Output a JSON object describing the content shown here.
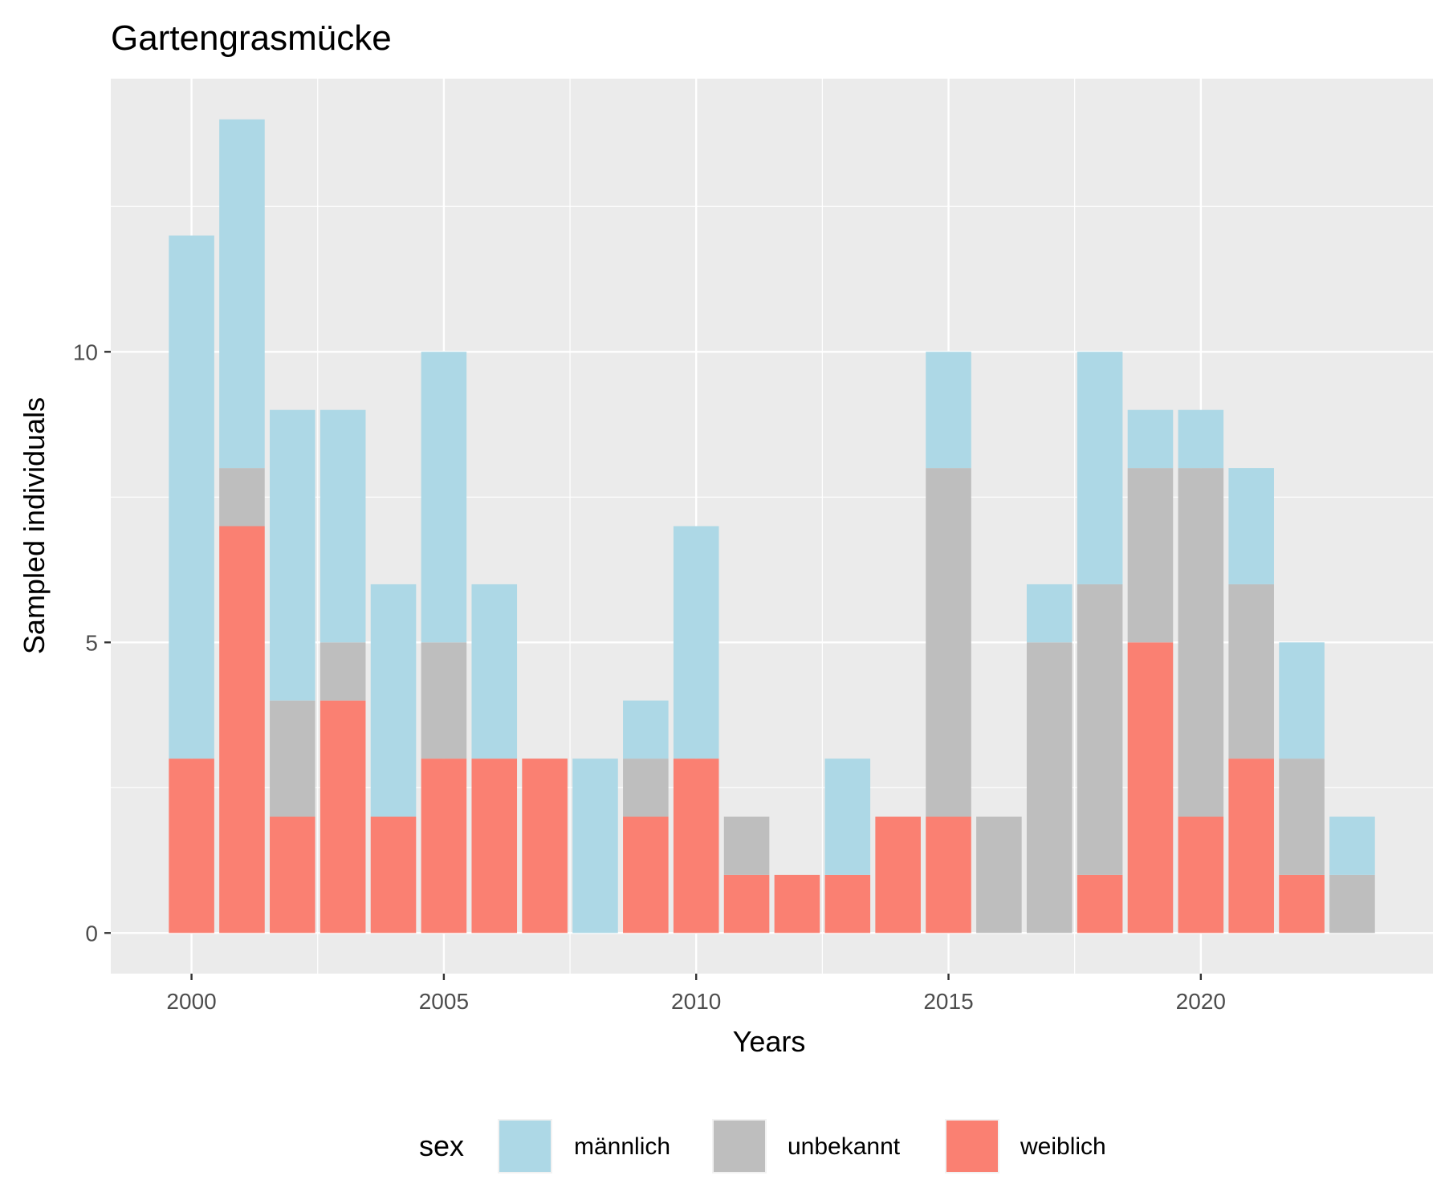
{
  "chart_data": {
    "type": "bar",
    "stacked": true,
    "title": "Gartengrasmücke",
    "xlabel": "Years",
    "ylabel": "Sampled individuals",
    "x": [
      2000,
      2001,
      2002,
      2003,
      2004,
      2005,
      2006,
      2007,
      2008,
      2009,
      2010,
      2011,
      2012,
      2013,
      2014,
      2015,
      2016,
      2017,
      2018,
      2019,
      2020,
      2021,
      2022,
      2023
    ],
    "series": [
      {
        "name": "weiblich",
        "color": "#fa8072",
        "values": [
          3,
          7,
          2,
          4,
          2,
          3,
          3,
          3,
          0,
          2,
          3,
          1,
          1,
          1,
          2,
          2,
          0,
          0,
          1,
          5,
          2,
          3,
          1,
          0
        ]
      },
      {
        "name": "unbekannt",
        "color": "#bebebe",
        "values": [
          0,
          1,
          2,
          1,
          0,
          2,
          0,
          0,
          0,
          1,
          0,
          1,
          0,
          0,
          0,
          6,
          2,
          5,
          5,
          3,
          6,
          3,
          2,
          1
        ]
      },
      {
        "name": "männlich",
        "color": "#add8e6",
        "values": [
          9,
          6,
          5,
          4,
          4,
          5,
          3,
          0,
          3,
          1,
          4,
          0,
          0,
          2,
          0,
          2,
          0,
          1,
          4,
          1,
          1,
          2,
          2,
          1
        ]
      }
    ],
    "xlim": [
      1998.4,
      2024.6
    ],
    "ylim": [
      -0.7,
      14.7
    ],
    "x_ticks": [
      "2000",
      "2005",
      "2010",
      "2015",
      "2020"
    ],
    "y_ticks": [
      "0",
      "5",
      "10"
    ],
    "grid": true,
    "legend": {
      "title": "sex",
      "position": "bottom",
      "items": [
        "männlich",
        "unbekannt",
        "weiblich"
      ]
    }
  }
}
